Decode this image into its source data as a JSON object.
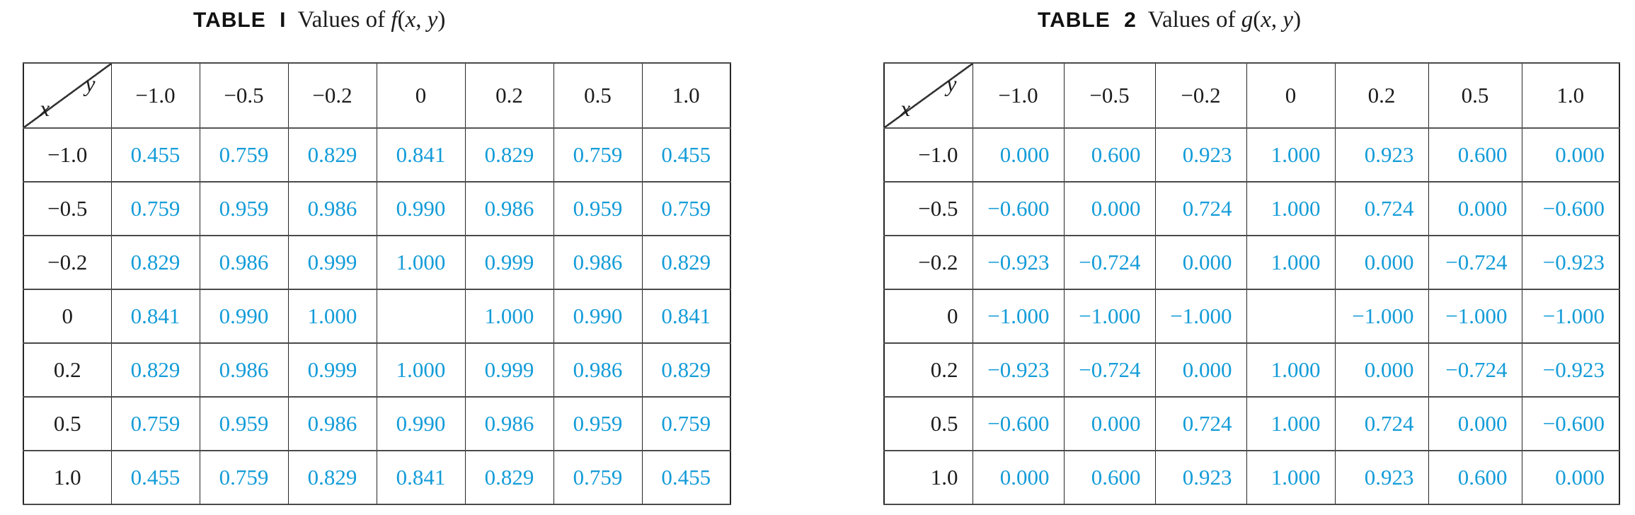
{
  "colors": {
    "value_blue": "#149cd8",
    "text_black": "#1c1c1c",
    "grid_line": "#2b2b2b"
  },
  "tables": [
    {
      "name": "values-table-f",
      "title_label": "TABLE I",
      "title_values_text": "Values of ",
      "func_name": "f",
      "func_open": "(",
      "func_arg1": "x",
      "func_comma": ", ",
      "func_arg2": "y",
      "func_close": ")",
      "corner_top": "y",
      "corner_bottom": "x",
      "col_headers": [
        "−1.0",
        "−0.5",
        "−0.2",
        "0",
        "0.2",
        "0.5",
        "1.0"
      ],
      "rows": [
        {
          "header": "−1.0",
          "cells": [
            "0.455",
            "0.759",
            "0.829",
            "0.841",
            "0.829",
            "0.759",
            "0.455"
          ]
        },
        {
          "header": "−0.5",
          "cells": [
            "0.759",
            "0.959",
            "0.986",
            "0.990",
            "0.986",
            "0.959",
            "0.759"
          ]
        },
        {
          "header": "−0.2",
          "cells": [
            "0.829",
            "0.986",
            "0.999",
            "1.000",
            "0.999",
            "0.986",
            "0.829"
          ]
        },
        {
          "header": "0",
          "cells": [
            "0.841",
            "0.990",
            "1.000",
            "",
            "1.000",
            "0.990",
            "0.841"
          ]
        },
        {
          "header": "0.2",
          "cells": [
            "0.829",
            "0.986",
            "0.999",
            "1.000",
            "0.999",
            "0.986",
            "0.829"
          ]
        },
        {
          "header": "0.5",
          "cells": [
            "0.759",
            "0.959",
            "0.986",
            "0.990",
            "0.986",
            "0.959",
            "0.759"
          ]
        },
        {
          "header": "1.0",
          "cells": [
            "0.455",
            "0.759",
            "0.829",
            "0.841",
            "0.829",
            "0.759",
            "0.455"
          ]
        }
      ]
    },
    {
      "name": "values-table-g",
      "title_label": "TABLE 2",
      "title_values_text": "Values of ",
      "func_name": "g",
      "func_open": "(",
      "func_arg1": "x",
      "func_comma": ", ",
      "func_arg2": "y",
      "func_close": ")",
      "corner_top": "y",
      "corner_bottom": "x",
      "col_headers": [
        "−1.0",
        "−0.5",
        "−0.2",
        "0",
        "0.2",
        "0.5",
        "1.0"
      ],
      "rows": [
        {
          "header": "−1.0",
          "cells": [
            "0.000",
            "0.600",
            "0.923",
            "1.000",
            "0.923",
            "0.600",
            "0.000"
          ]
        },
        {
          "header": "−0.5",
          "cells": [
            "−0.600",
            "0.000",
            "0.724",
            "1.000",
            "0.724",
            "0.000",
            "−0.600"
          ]
        },
        {
          "header": "−0.2",
          "cells": [
            "−0.923",
            "−0.724",
            "0.000",
            "1.000",
            "0.000",
            "−0.724",
            "−0.923"
          ]
        },
        {
          "header": "0",
          "cells": [
            "−1.000",
            "−1.000",
            "−1.000",
            "",
            "−1.000",
            "−1.000",
            "−1.000"
          ]
        },
        {
          "header": "0.2",
          "cells": [
            "−0.923",
            "−0.724",
            "0.000",
            "1.000",
            "0.000",
            "−0.724",
            "−0.923"
          ]
        },
        {
          "header": "0.5",
          "cells": [
            "−0.600",
            "0.000",
            "0.724",
            "1.000",
            "0.724",
            "0.000",
            "−0.600"
          ]
        },
        {
          "header": "1.0",
          "cells": [
            "0.000",
            "0.600",
            "0.923",
            "1.000",
            "0.923",
            "0.600",
            "0.000"
          ]
        }
      ]
    }
  ]
}
